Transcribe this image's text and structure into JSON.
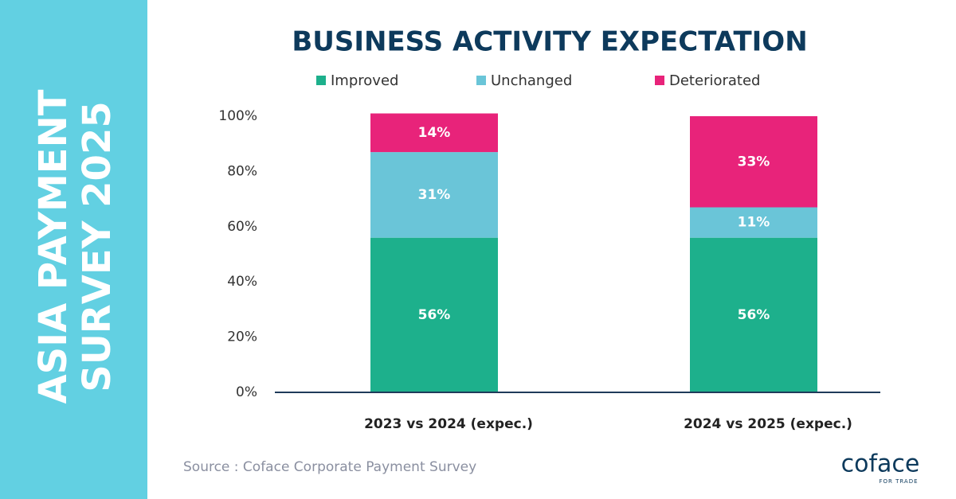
{
  "sidebar": {
    "lines": [
      "ASIA PAYMENT",
      "SURVEY 2025"
    ]
  },
  "chart_data": {
    "type": "stacked_bar",
    "title": "BUSINESS ACTIVITY EXPECTATION",
    "categories": [
      "2023 vs 2024 (expec.)",
      "2024 vs 2025 (expec.)"
    ],
    "series": [
      {
        "name": "Improved",
        "color": "#1db08c",
        "values": [
          56,
          56
        ],
        "value_labels": [
          "56%",
          "56%"
        ]
      },
      {
        "name": "Unchanged",
        "color": "#6ac5d8",
        "values": [
          31,
          11
        ],
        "value_labels": [
          "31%",
          "11%"
        ]
      },
      {
        "name": "Deteriorated",
        "color": "#e8237a",
        "values": [
          14,
          33
        ],
        "value_labels": [
          "14%",
          "33%"
        ]
      }
    ],
    "ylim": [
      0,
      100
    ],
    "yticks": [
      {
        "value": 0,
        "label": "0%"
      },
      {
        "value": 20,
        "label": "20%"
      },
      {
        "value": 40,
        "label": "40%"
      },
      {
        "value": 60,
        "label": "60%"
      },
      {
        "value": 80,
        "label": "80%"
      },
      {
        "value": 100,
        "label": "100%"
      }
    ],
    "grid": false,
    "legend": "top"
  },
  "source": "Source : Coface Corporate Payment Survey",
  "logo": {
    "name": "coface",
    "tagline": "FOR TRADE"
  }
}
